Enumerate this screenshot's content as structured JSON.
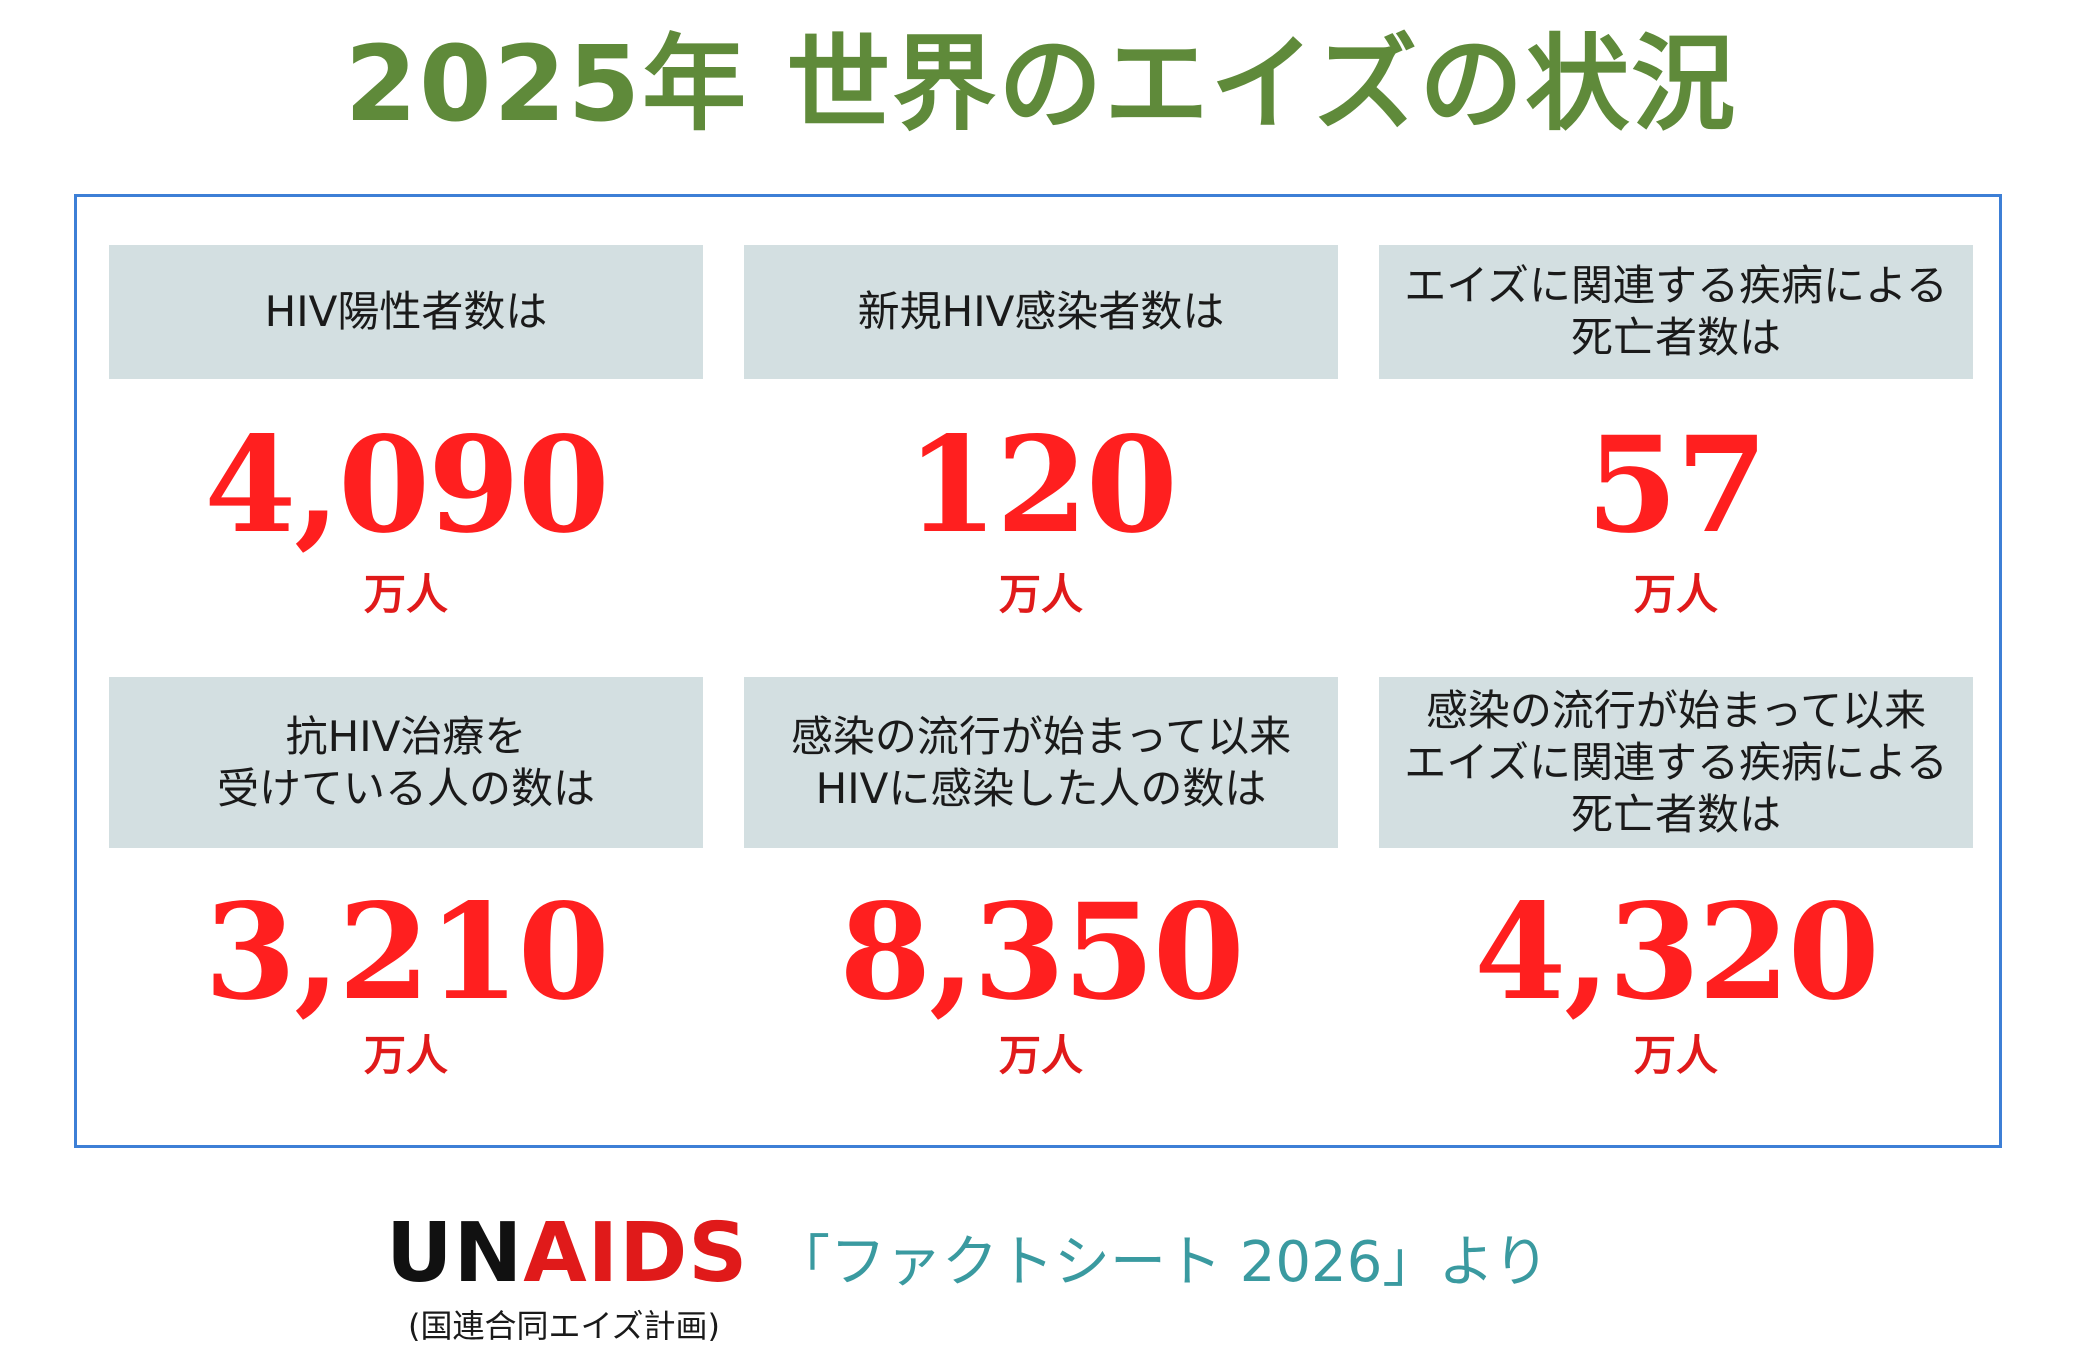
{
  "title": "2025年 世界のエイズの状況",
  "colors": {
    "title": "#5f8a3a",
    "value": "#ff1f1f",
    "unit": "#e01a1a",
    "frame_border": "#3d7fd6",
    "label_bg": "#d3dfe1",
    "source_org_black": "#111111",
    "source_org_red": "#e01a1a",
    "source_ref": "#3a9aa0"
  },
  "stats": [
    {
      "label": "HIV陽性者数は",
      "value": "4,090",
      "unit": "万人"
    },
    {
      "label": "新規HIV感染者数は",
      "value": "120",
      "unit": "万人"
    },
    {
      "label": "エイズに関連する疾病による\n死亡者数は",
      "value": "57",
      "unit": "万人"
    },
    {
      "label": "抗HIV治療を\n受けている人の数は",
      "value": "3,210",
      "unit": "万人"
    },
    {
      "label": "感染の流行が始まって以来\nHIVに感染した人の数は",
      "value": "8,350",
      "unit": "万人"
    },
    {
      "label": "感染の流行が始まって以来\nエイズに関連する疾病による\n死亡者数は",
      "value": "4,320",
      "unit": "万人"
    }
  ],
  "source": {
    "org_prefix": "UN",
    "org_suffix": "AIDS",
    "org_subtitle": "(国連合同エイズ計画)",
    "reference": "「ファクトシート 2026」より"
  }
}
